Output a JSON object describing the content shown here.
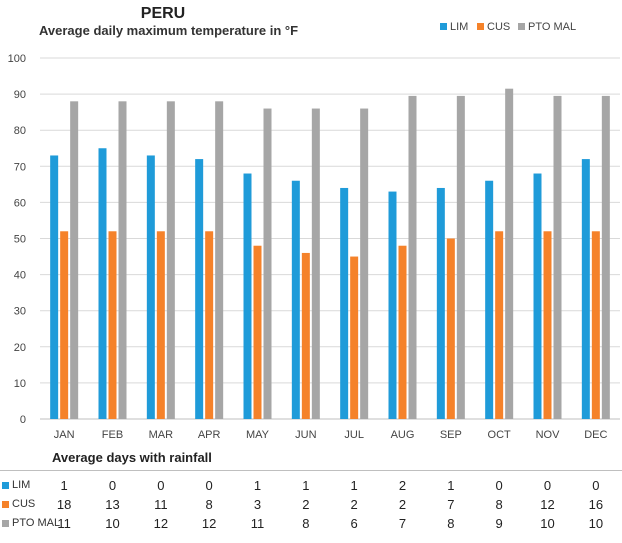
{
  "chart_data": {
    "type": "bar",
    "title": "PERU",
    "subtitle": "Average daily maximum  temperature in °F",
    "categories": [
      "JAN",
      "FEB",
      "MAR",
      "APR",
      "MAY",
      "JUN",
      "JUL",
      "AUG",
      "SEP",
      "OCT",
      "NOV",
      "DEC"
    ],
    "series": [
      {
        "name": "LIM",
        "color": "#1f9bd9",
        "values": [
          73,
          75,
          73,
          72,
          68,
          66,
          64,
          63,
          64,
          66,
          68,
          72
        ]
      },
      {
        "name": "CUS",
        "color": "#f5822a",
        "values": [
          52,
          52,
          52,
          52,
          48,
          46,
          45,
          48,
          50,
          52,
          52,
          52
        ]
      },
      {
        "name": "PTO MAL",
        "color": "#a6a6a6",
        "values": [
          88,
          88,
          88,
          88,
          86,
          86,
          86,
          89.5,
          89.5,
          91.5,
          89.5,
          89.5
        ]
      }
    ],
    "ylim": [
      0,
      100
    ],
    "yticks": [
      0,
      10,
      20,
      30,
      40,
      50,
      60,
      70,
      80,
      90,
      100
    ],
    "grid": true,
    "legend": "top-right"
  },
  "rainfall": {
    "title": "Average days with rainfall",
    "rows": [
      {
        "name": "LIM",
        "color": "#1f9bd9",
        "values": [
          "1",
          "0",
          "0",
          "0",
          "1",
          "1",
          "1",
          "2",
          "1",
          "0",
          "0",
          "0"
        ]
      },
      {
        "name": "CUS",
        "color": "#f5822a",
        "values": [
          "18",
          "13",
          "11",
          "8",
          "3",
          "2",
          "2",
          "2",
          "7",
          "8",
          "12",
          "16"
        ]
      },
      {
        "name": "PTO MAL",
        "color": "#a6a6a6",
        "values": [
          "11",
          "10",
          "12",
          "12",
          "11",
          "8",
          "6",
          "7",
          "8",
          "9",
          "10",
          "10"
        ]
      }
    ]
  }
}
